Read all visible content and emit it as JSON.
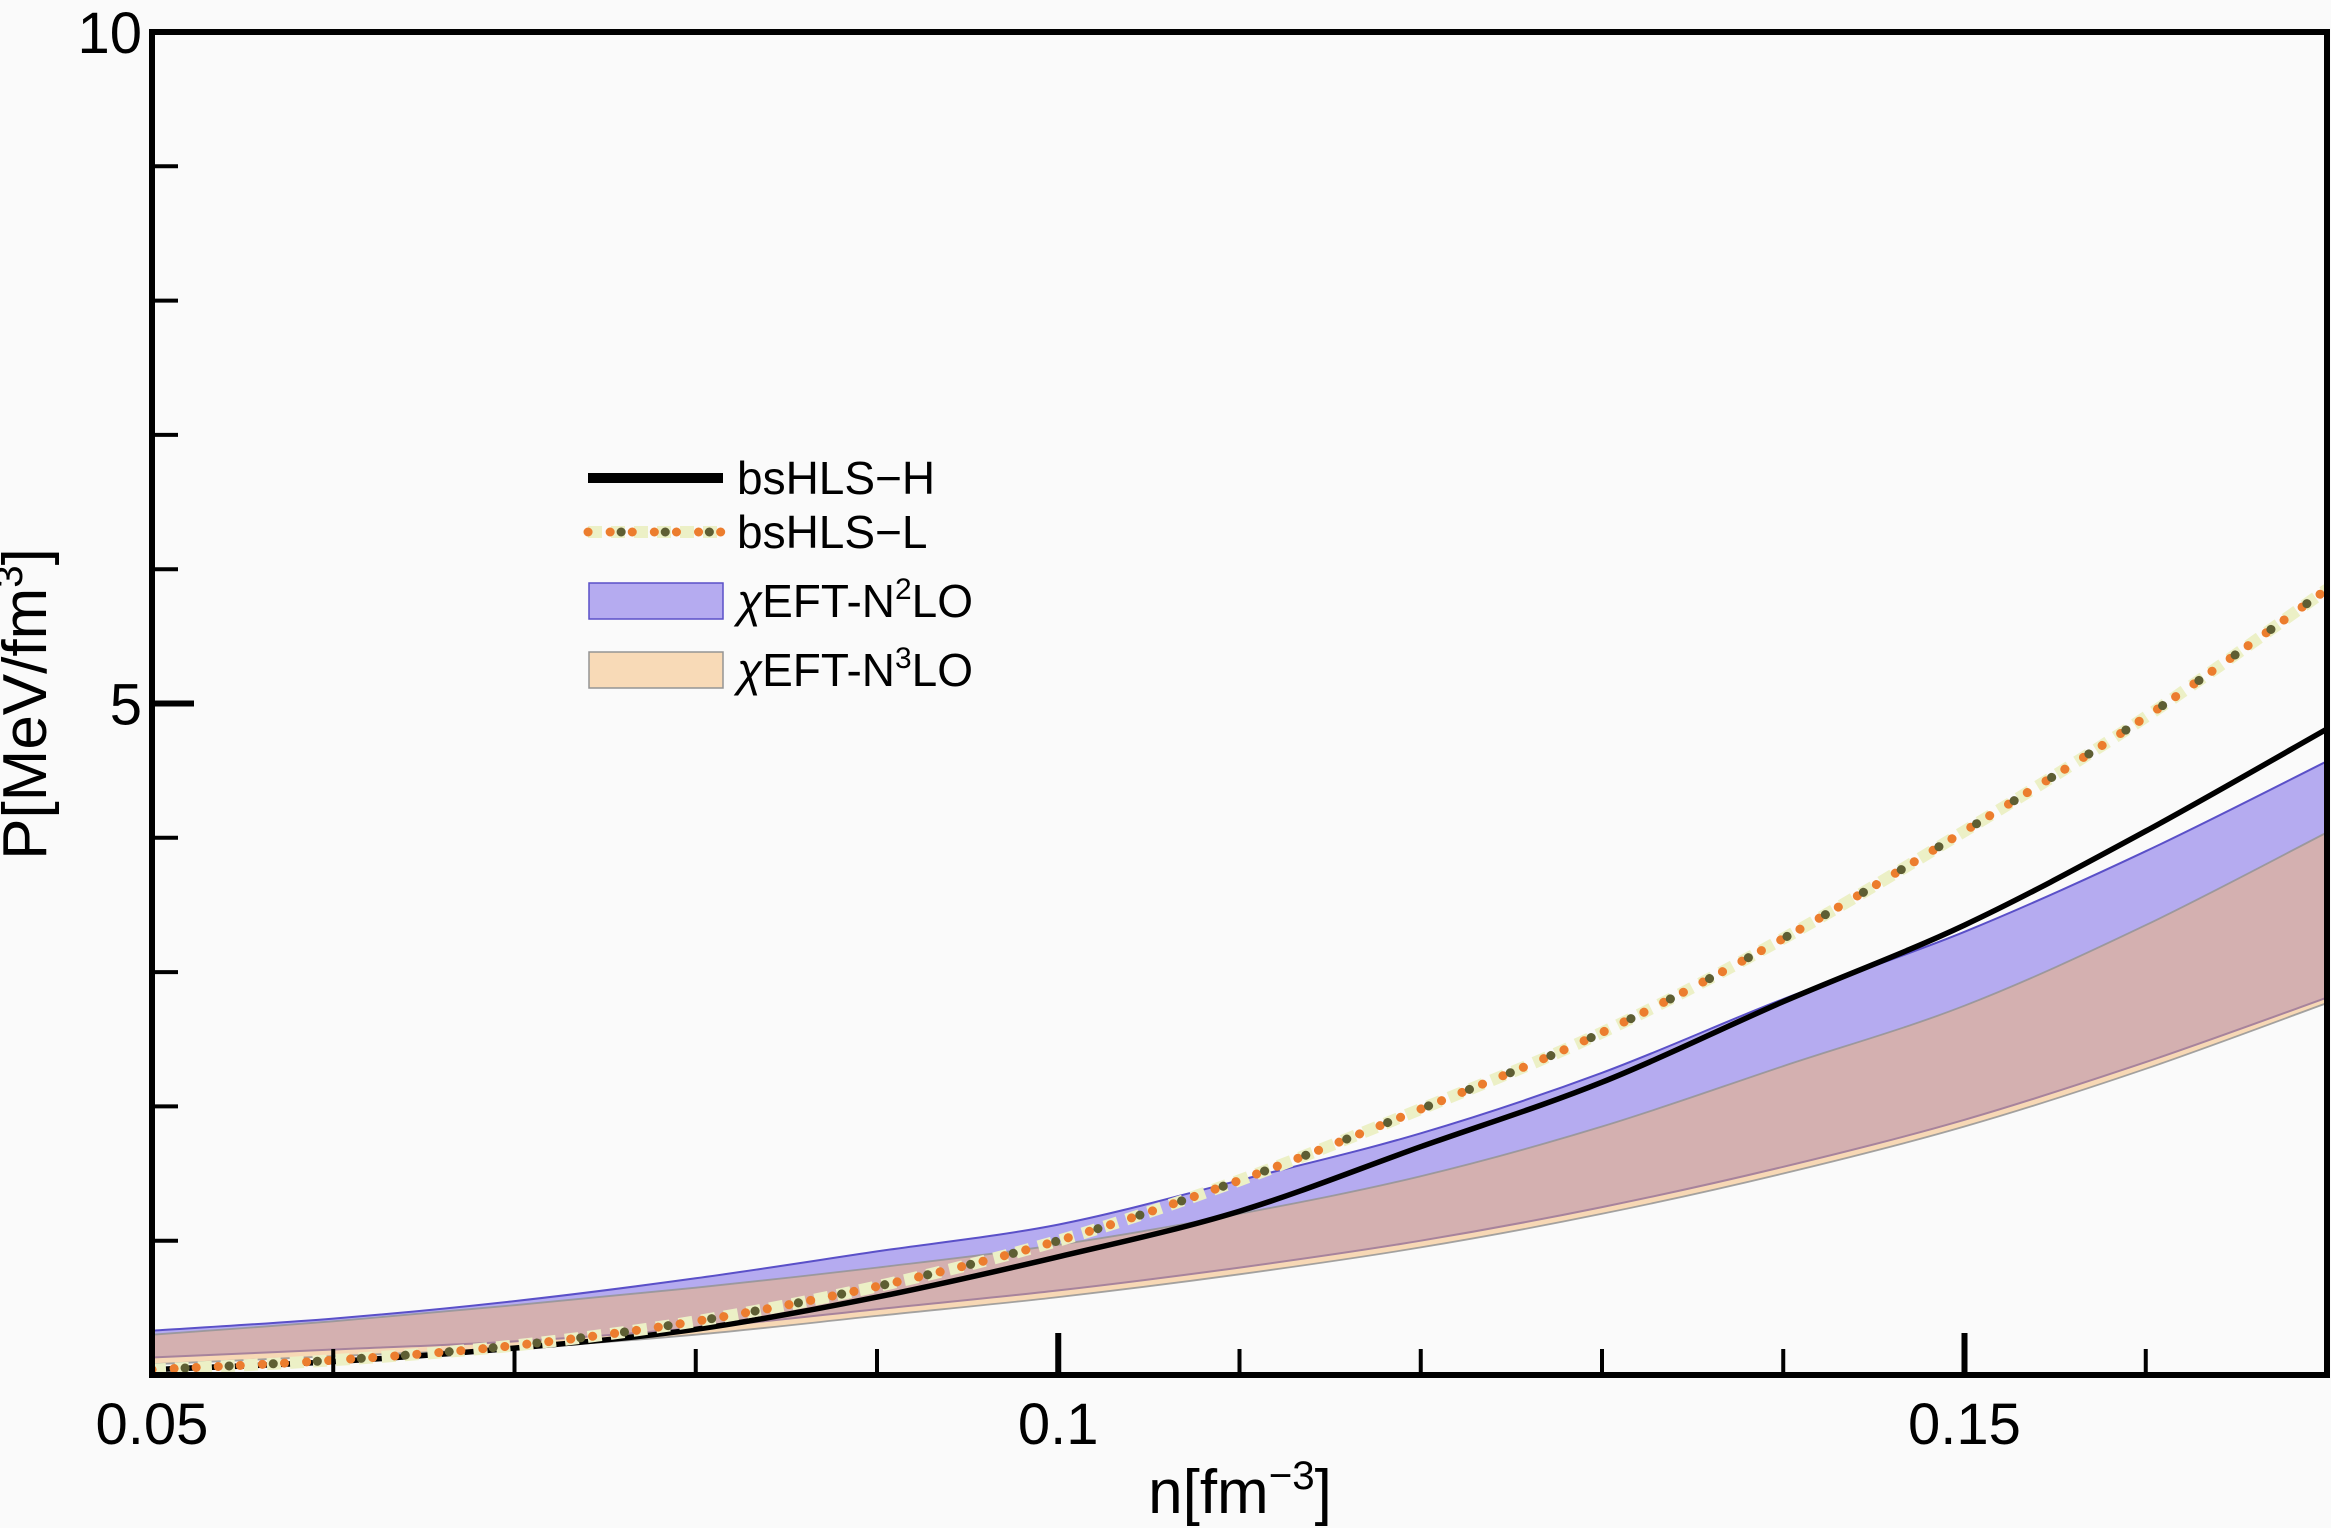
{
  "figure": {
    "background": "#FAFAFA",
    "frame_color": "#000000",
    "text_color": "#000000"
  },
  "axes": {
    "x": {
      "label_text": "n[fm⁻³]",
      "label_parts": [
        {
          "t": "n[fm"
        },
        {
          "t": "−3",
          "sup": true
        },
        {
          "t": "]"
        }
      ],
      "min": 0.05,
      "max": 0.17,
      "major_ticks": [
        {
          "value": 0.05,
          "label": "0.05"
        },
        {
          "value": 0.1,
          "label": "0.1"
        },
        {
          "value": 0.15,
          "label": "0.15"
        }
      ],
      "minor_ticks": [
        0.06,
        0.07,
        0.08,
        0.09,
        0.11,
        0.12,
        0.13,
        0.14,
        0.16
      ]
    },
    "y": {
      "label_text": "P[MeV/fm³]",
      "label_parts": [
        {
          "t": "P[MeV/fm"
        },
        {
          "t": "3",
          "sup": true
        },
        {
          "t": "]"
        }
      ],
      "min": 0,
      "max": 10,
      "major_ticks": [
        {
          "value": 5,
          "label": "5"
        },
        {
          "value": 10,
          "label": "10"
        }
      ],
      "minor_ticks": [
        1,
        2,
        3,
        4,
        6,
        7,
        8,
        9
      ]
    }
  },
  "legend": {
    "items": [
      {
        "id": "bshls-h",
        "text": "bsHLS−H",
        "parts": [
          {
            "t": "bsHLS−H"
          }
        ],
        "swatch": "line",
        "color": "#000000"
      },
      {
        "id": "bshls-l",
        "text": "bsHLS−L",
        "parts": [
          {
            "t": "bsHLS−L"
          }
        ],
        "swatch": "dotted",
        "colors": {
          "dot": "#EC7D2E",
          "alt": "#5E5E33",
          "halo": "#ECF0C6"
        }
      },
      {
        "id": "chieft-n2lo",
        "text": "χEFT-N²LO",
        "parts": [
          {
            "t": "χ",
            "italic": true
          },
          {
            "t": "EFT-N"
          },
          {
            "t": "2",
            "sup": true
          },
          {
            "t": "LO"
          }
        ],
        "swatch": "band",
        "fill": "#B5ABF0",
        "edge": "#5A50C8"
      },
      {
        "id": "chieft-n3lo",
        "text": "χEFT-N³LO",
        "parts": [
          {
            "t": "χ",
            "italic": true
          },
          {
            "t": "EFT-N"
          },
          {
            "t": "3",
            "sup": true
          },
          {
            "t": "LO"
          }
        ],
        "swatch": "band",
        "fill": "#F8DAB7",
        "edge": "#949494"
      }
    ]
  },
  "chart_data": {
    "type": "line",
    "title": "",
    "xlabel": "n[fm⁻³]",
    "ylabel": "P[MeV/fm³]",
    "xlim": [
      0.05,
      0.17
    ],
    "ylim": [
      0,
      10
    ],
    "grid": false,
    "legend_position": "upper-left-inside",
    "x": [
      0.05,
      0.06,
      0.07,
      0.08,
      0.09,
      0.1,
      0.11,
      0.12,
      0.13,
      0.14,
      0.15,
      0.16,
      0.17
    ],
    "series": [
      {
        "name": "bsHLS-H",
        "style": "solid",
        "color": "#000000",
        "values": [
          0.04,
          0.1,
          0.2,
          0.34,
          0.58,
          0.88,
          1.22,
          1.7,
          2.18,
          2.78,
          3.35,
          4.05,
          4.81
        ]
      },
      {
        "name": "bsHLS-L",
        "style": "dotted",
        "color": "#EC7D2E",
        "values": [
          0.04,
          0.11,
          0.22,
          0.4,
          0.66,
          1.0,
          1.45,
          1.98,
          2.55,
          3.25,
          4.05,
          4.9,
          5.85
        ]
      }
    ],
    "bands": [
      {
        "name": "χEFT-N2LO",
        "fill": "#B5ABF0",
        "edge": "#5A50C8",
        "upper": [
          0.33,
          0.42,
          0.55,
          0.72,
          0.92,
          1.12,
          1.45,
          1.8,
          2.25,
          2.8,
          3.3,
          3.9,
          4.57
        ],
        "lower": [
          0.13,
          0.19,
          0.25,
          0.35,
          0.49,
          0.63,
          0.8,
          1.0,
          1.25,
          1.55,
          1.9,
          2.33,
          2.81
        ]
      },
      {
        "name": "χEFT-N3LO",
        "fill": "rgba(243,182,112,0.5)",
        "edge": "#949494",
        "upper": [
          0.3,
          0.4,
          0.52,
          0.65,
          0.8,
          0.97,
          1.2,
          1.48,
          1.85,
          2.3,
          2.75,
          3.35,
          4.04
        ],
        "lower": [
          0.08,
          0.14,
          0.2,
          0.3,
          0.44,
          0.58,
          0.75,
          0.95,
          1.2,
          1.5,
          1.85,
          2.28,
          2.77
        ]
      }
    ]
  }
}
